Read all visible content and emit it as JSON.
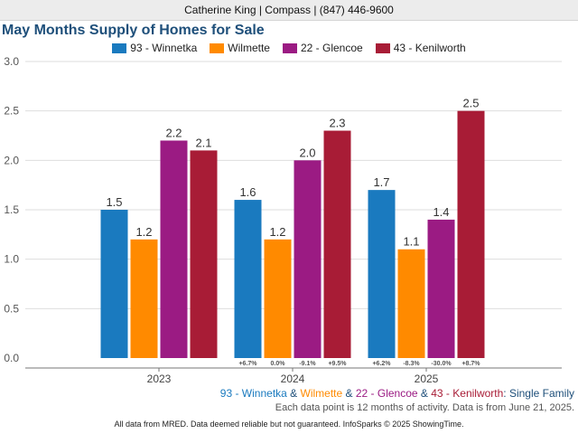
{
  "header": {
    "contact": "Catherine King | Compass | (847) 446-9600"
  },
  "chart_data": {
    "type": "bar",
    "title": "May Months Supply of Homes for Sale",
    "categories": [
      "2023",
      "2024",
      "2025"
    ],
    "ylim": [
      0,
      3.0
    ],
    "yticks": [
      "0.0",
      "0.5",
      "1.0",
      "1.5",
      "2.0",
      "2.5",
      "3.0"
    ],
    "grid": true,
    "legend_position": "top",
    "series": [
      {
        "name": "93 - Winnetka",
        "color": "#1a7abf",
        "values": [
          1.5,
          1.6,
          1.7
        ],
        "labels": [
          "1.5",
          "1.6",
          "1.7"
        ],
        "changes": [
          "",
          "+6.7%",
          "+6.2%"
        ]
      },
      {
        "name": "Wilmette",
        "color": "#ff8a00",
        "values": [
          1.2,
          1.2,
          1.1
        ],
        "labels": [
          "1.2",
          "1.2",
          "1.1"
        ],
        "changes": [
          "",
          "0.0%",
          "-8.3%"
        ]
      },
      {
        "name": "22 - Glencoe",
        "color": "#9b1b83",
        "values": [
          2.2,
          2.0,
          1.4
        ],
        "labels": [
          "2.2",
          "2.0",
          "1.4"
        ],
        "changes": [
          "",
          "-9.1%",
          "-30.0%"
        ]
      },
      {
        "name": "43 - Kenilworth",
        "color": "#a81c36",
        "values": [
          2.1,
          2.3,
          2.5
        ],
        "labels": [
          "2.1",
          "2.3",
          "2.5"
        ],
        "changes": [
          "",
          "+9.5%",
          "+8.7%"
        ]
      }
    ]
  },
  "subtitle": {
    "parts": [
      {
        "text": "93 - Winnetka",
        "color": "#1a7abf"
      },
      {
        "text": " & ",
        "color": "#1e4f7a"
      },
      {
        "text": "Wilmette",
        "color": "#ff8a00"
      },
      {
        "text": " & ",
        "color": "#1e4f7a"
      },
      {
        "text": "22 - Glencoe",
        "color": "#9b1b83"
      },
      {
        "text": " & ",
        "color": "#1e4f7a"
      },
      {
        "text": "43 - Kenilworth",
        "color": "#a81c36"
      },
      {
        "text": ": Single Family",
        "color": "#1e4f7a"
      }
    ]
  },
  "note": "Each data point is 12 months of activity. Data is from June 21, 2025.",
  "footer": "All data from MRED. Data deemed reliable but not guaranteed. InfoSparks © 2025 ShowingTime."
}
